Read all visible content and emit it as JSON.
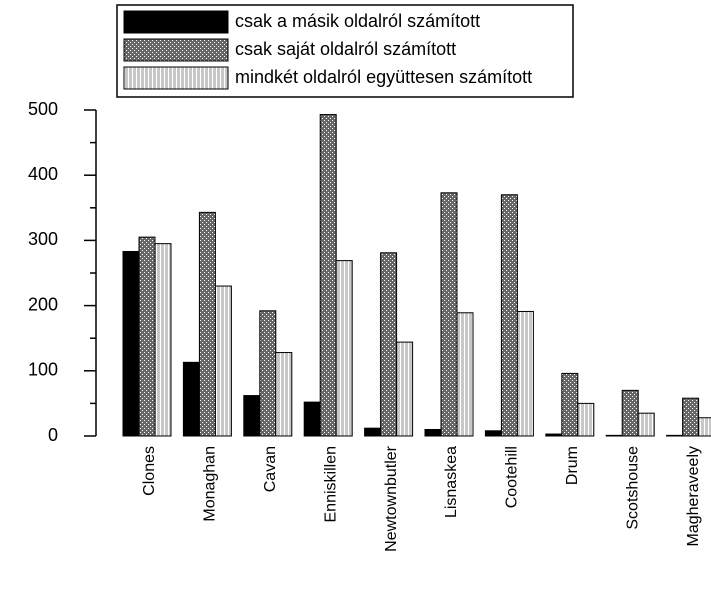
{
  "chart_data": {
    "type": "bar",
    "categories": [
      "Clones",
      "Monaghan",
      "Cavan",
      "Enniskillen",
      "Newtownbutler",
      "Lisnaskea",
      "Cootehill",
      "Drum",
      "Scotshouse",
      "Magheraveely"
    ],
    "series": [
      {
        "name": "csak a másik oldalról számított",
        "color": "#000000",
        "values": [
          283,
          113,
          62,
          52,
          12,
          10,
          8,
          3,
          1,
          1
        ]
      },
      {
        "name": "csak saját oldalról számított",
        "color": "#666666",
        "values": [
          305,
          343,
          192,
          493,
          281,
          373,
          370,
          96,
          70,
          58
        ]
      },
      {
        "name": "mindkét oldalról együttesen számított",
        "color": "#c8c8c8",
        "values": [
          295,
          230,
          128,
          269,
          144,
          189,
          191,
          50,
          35,
          28
        ]
      }
    ],
    "ylim": [
      0,
      500
    ],
    "yticks": [
      0,
      100,
      200,
      300,
      400,
      500
    ],
    "yminor_ticks": [
      50,
      150,
      250,
      350,
      450
    ],
    "grid": false,
    "legend": "top"
  }
}
